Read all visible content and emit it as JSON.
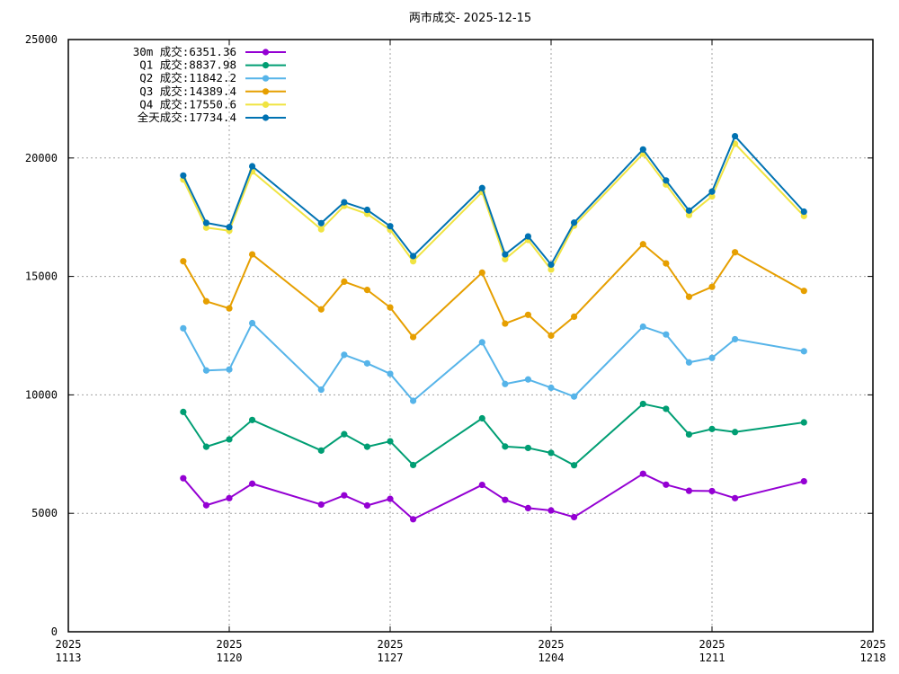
{
  "chart_data": {
    "type": "line",
    "title": "两市成交- 2025-12-15",
    "xlabel": "",
    "ylabel": "",
    "ylim": [
      0,
      25000
    ],
    "xlim": [
      "2025-11-13",
      "2025-12-18"
    ],
    "grid": true,
    "legend_position": "top-left",
    "yticks": [
      "0",
      "5000",
      "10000",
      "15000",
      "20000",
      "25000"
    ],
    "xticks": [
      {
        "value": "2025-11-13",
        "line1": "2025",
        "line2": "1113"
      },
      {
        "value": "2025-11-20",
        "line1": "2025",
        "line2": "1120"
      },
      {
        "value": "2025-11-27",
        "line1": "2025",
        "line2": "1127"
      },
      {
        "value": "2025-12-04",
        "line1": "2025",
        "line2": "1204"
      },
      {
        "value": "2025-12-11",
        "line1": "2025",
        "line2": "1211"
      },
      {
        "value": "2025-12-18",
        "line1": "2025",
        "line2": "1218"
      }
    ],
    "x": [
      "2025-11-18",
      "2025-11-19",
      "2025-11-20",
      "2025-11-21",
      "2025-11-24",
      "2025-11-25",
      "2025-11-26",
      "2025-11-27",
      "2025-11-28",
      "2025-12-01",
      "2025-12-02",
      "2025-12-03",
      "2025-12-04",
      "2025-12-05",
      "2025-12-08",
      "2025-12-09",
      "2025-12-10",
      "2025-12-11",
      "2025-12-12",
      "2025-12-15"
    ],
    "series": [
      {
        "name": "30m 成交:6351.36",
        "color": "#9400d3",
        "values": [
          6480,
          5340,
          5640,
          6250,
          5370,
          5760,
          5330,
          5610,
          4750,
          6200,
          5570,
          5220,
          5120,
          4840,
          6670,
          6210,
          5950,
          5940,
          5640,
          6351.36
        ]
      },
      {
        "name": "Q1  成交:8837.98",
        "color": "#009e73",
        "values": [
          9280,
          7810,
          8120,
          8940,
          7650,
          8340,
          7810,
          8040,
          7040,
          9010,
          7820,
          7760,
          7550,
          7030,
          9620,
          9410,
          8330,
          8560,
          8430,
          8837.98
        ]
      },
      {
        "name": "Q2  成交:11842.2",
        "color": "#56b4e9",
        "values": [
          12810,
          11030,
          11070,
          13030,
          10220,
          11690,
          11330,
          10890,
          9750,
          12220,
          10460,
          10650,
          10300,
          9930,
          12880,
          12550,
          11370,
          11560,
          12350,
          11842.2
        ]
      },
      {
        "name": "Q3  成交:14389.4",
        "color": "#e69f00",
        "values": [
          15640,
          13950,
          13650,
          15930,
          13610,
          14780,
          14430,
          13690,
          12440,
          15160,
          13010,
          13380,
          12500,
          13300,
          16360,
          15550,
          14140,
          14560,
          16020,
          14389.4
        ]
      },
      {
        "name": "Q4  成交:17550.6",
        "color": "#f0e442",
        "values": [
          19090,
          17060,
          16930,
          19430,
          16990,
          17980,
          17640,
          16970,
          15640,
          18560,
          15730,
          16540,
          15290,
          17140,
          20180,
          18880,
          17590,
          18380,
          20600,
          17550.6
        ]
      },
      {
        "name": "全天成交:17734.4",
        "color": "#0072b2",
        "values": [
          19260,
          17260,
          17080,
          19650,
          17250,
          18130,
          17810,
          17120,
          15860,
          18730,
          15930,
          16690,
          15500,
          17270,
          20360,
          19050,
          17780,
          18580,
          20920,
          17734.4
        ]
      }
    ]
  }
}
